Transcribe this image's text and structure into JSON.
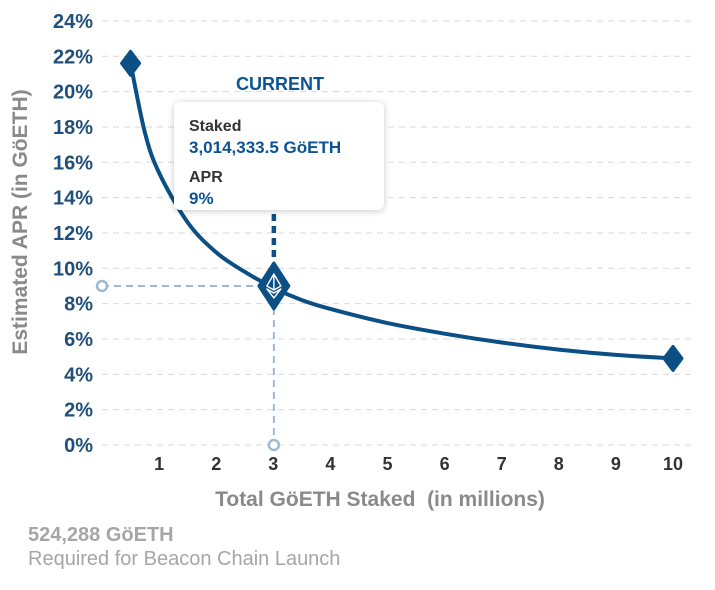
{
  "chart_data": {
    "type": "line",
    "title": "",
    "xlabel": "Total GöETH Staked  (in millions)",
    "ylabel": "Estimated APR (in GöETH)",
    "xlim": [
      0,
      10.4
    ],
    "ylim": [
      0,
      24
    ],
    "x_ticks": [
      "1",
      "2",
      "3",
      "4",
      "5",
      "6",
      "7",
      "8",
      "9",
      "10"
    ],
    "y_ticks": [
      "0%",
      "2%",
      "4%",
      "6%",
      "8%",
      "10%",
      "12%",
      "14%",
      "16%",
      "18%",
      "20%",
      "22%",
      "24%"
    ],
    "grid": true,
    "series": [
      {
        "x": [
          0.5,
          0.75,
          1,
          1.5,
          2,
          2.5,
          3,
          3.5,
          4,
          5,
          6,
          7,
          8,
          9,
          10
        ],
        "y": [
          21.6,
          17.7,
          15.4,
          12.6,
          10.9,
          9.8,
          8.9,
          8.2,
          7.7,
          6.9,
          6.3,
          5.8,
          5.4,
          5.1,
          4.9
        ]
      }
    ],
    "endpoints": [
      {
        "x": 0.5,
        "y": 21.6
      },
      {
        "x": 10,
        "y": 4.9
      }
    ],
    "current": {
      "label": "CURRENT",
      "x": 3.01,
      "y": 9
    },
    "tooltip": {
      "staked_label": "Staked",
      "staked_value": "3,014,333.5 GöETH",
      "apr_label": "APR",
      "apr_value": "9%"
    },
    "colors": {
      "line": "#0b4f84",
      "current_text": "#0b5394",
      "guide": "#9dbad4",
      "grid": "#d9d9d9",
      "y_ticks": "#1f4f7a",
      "x_ticks": "#333333",
      "axis_titles": "#8a8a8a"
    }
  },
  "footer": {
    "amount": "524,288 GöETH",
    "note": "Required for Beacon Chain Launch"
  }
}
